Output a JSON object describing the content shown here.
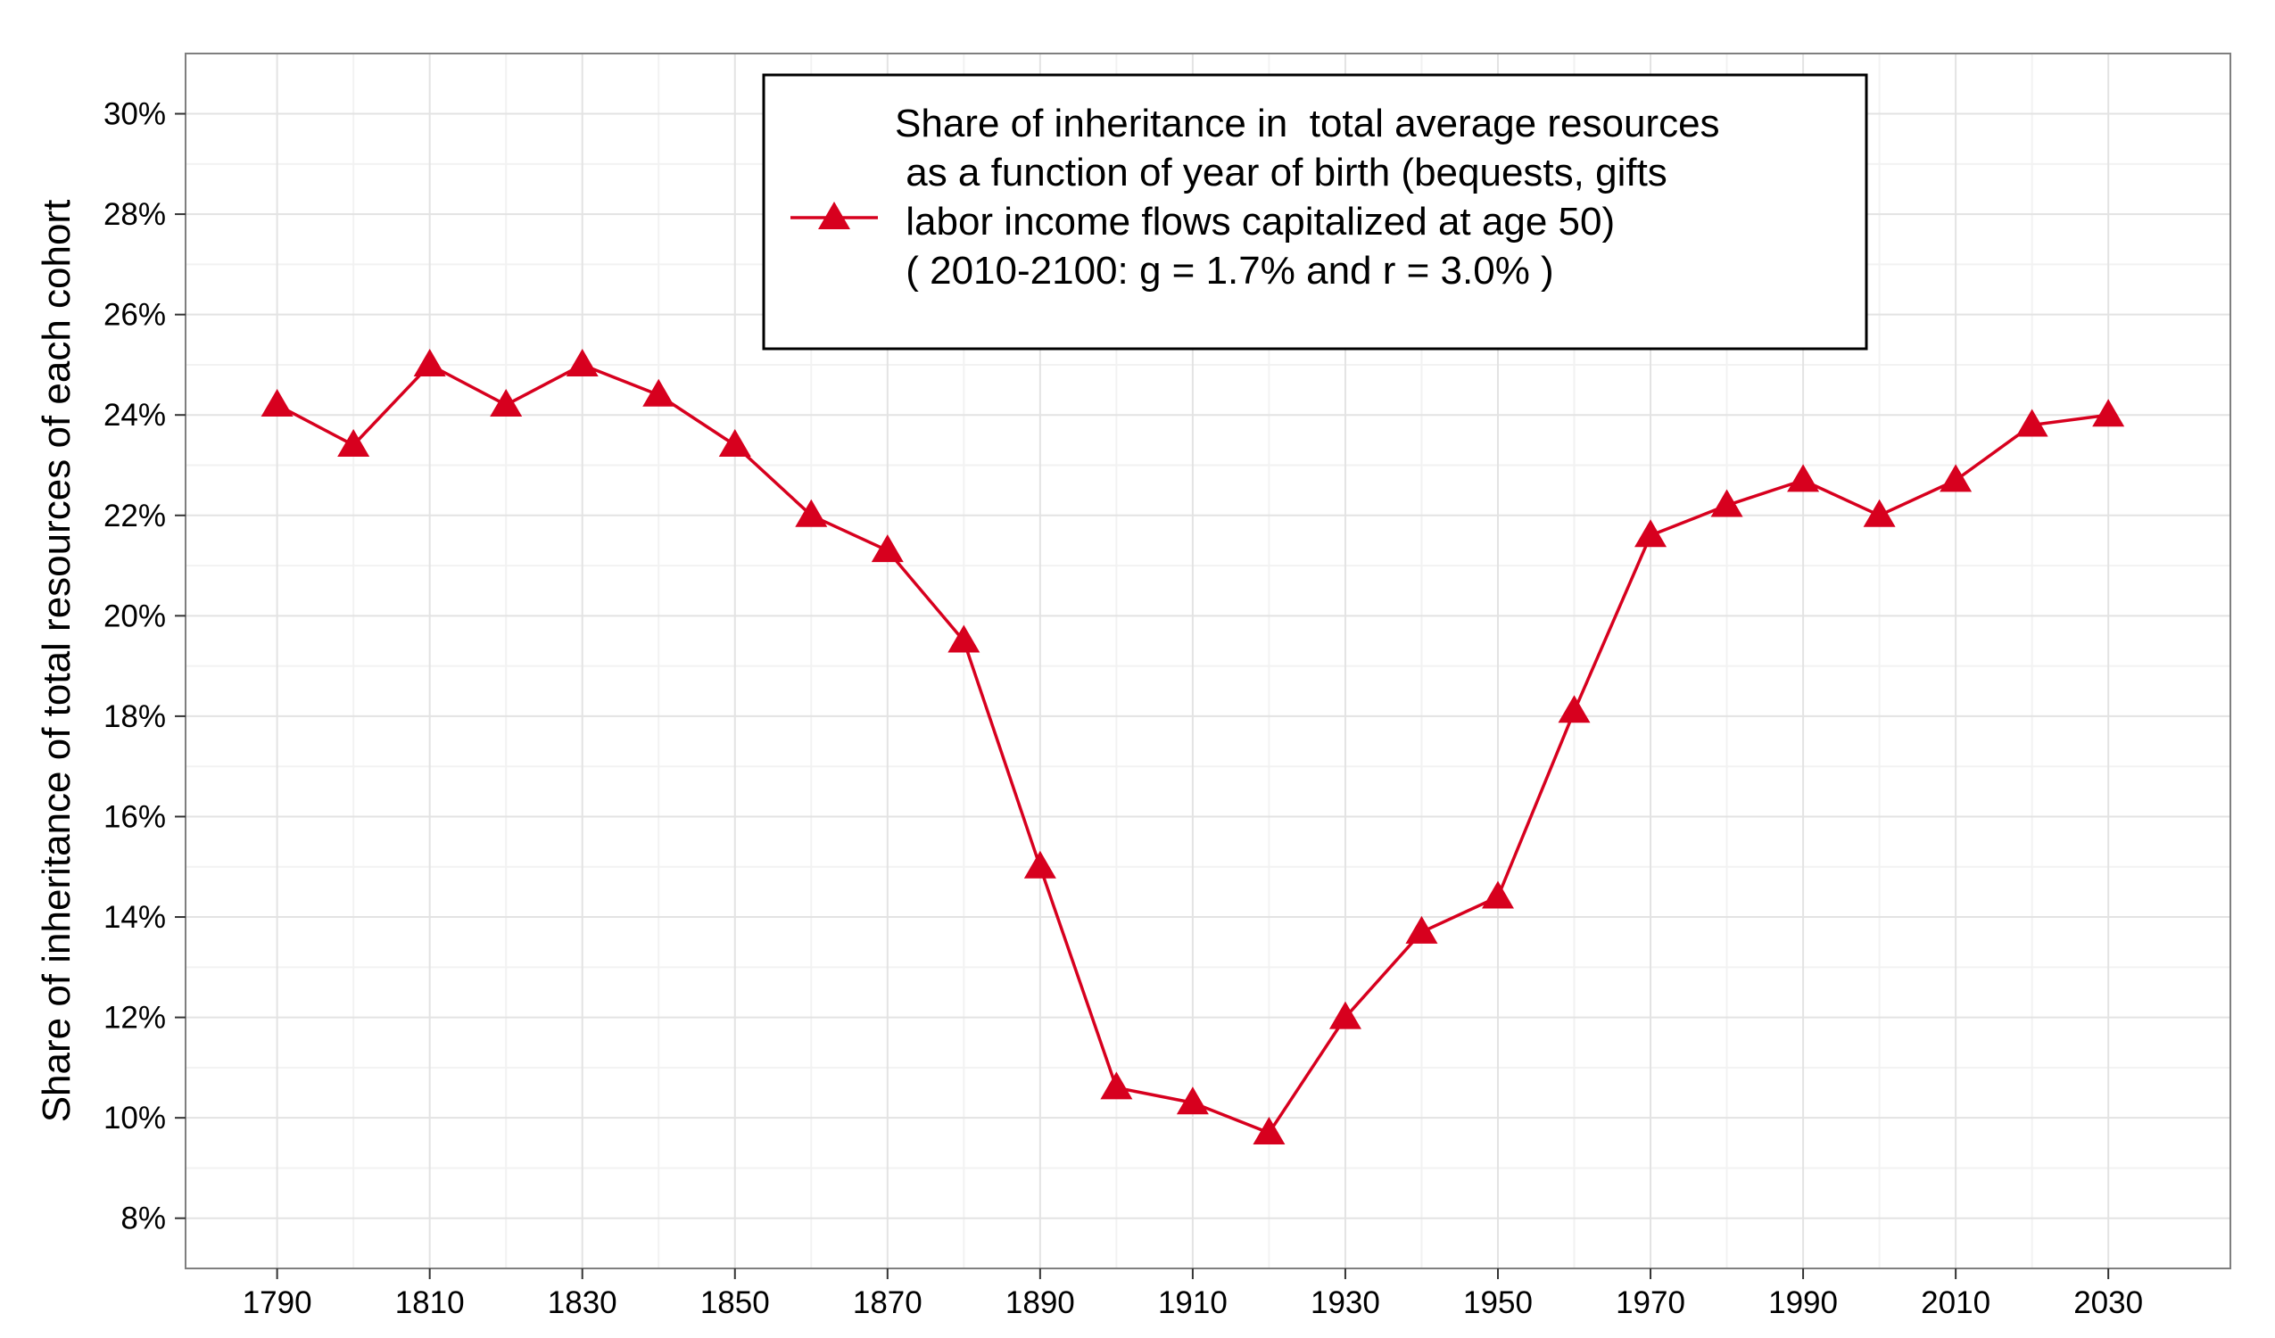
{
  "chart_data": {
    "type": "line",
    "title": "",
    "xlabel": "",
    "ylabel": "Share of inheritance of total resources of each cohort",
    "x": [
      1790,
      1800,
      1810,
      1820,
      1830,
      1840,
      1850,
      1860,
      1870,
      1880,
      1890,
      1900,
      1910,
      1920,
      1930,
      1940,
      1950,
      1960,
      1970,
      1980,
      1990,
      2000,
      2010,
      2020,
      2030
    ],
    "series": [
      {
        "name": "Share of inheritance in  total average resources as a function of year of birth (bequests, gifts labor income flows capitalized at age 50) ( 2010-2100: g = 1.7% and r = 3.0% )",
        "values": [
          24.2,
          23.4,
          25.0,
          24.2,
          25.0,
          24.4,
          23.4,
          22.0,
          21.3,
          19.5,
          15.0,
          10.6,
          10.3,
          9.7,
          12.0,
          13.7,
          14.4,
          18.1,
          21.6,
          22.2,
          22.7,
          22.0,
          22.7,
          23.8,
          24.0
        ]
      }
    ],
    "xlim": [
      1778,
      2046
    ],
    "ylim": [
      7,
      31.2
    ],
    "xticks": [
      "1790",
      "1810",
      "1830",
      "1850",
      "1870",
      "1890",
      "1910",
      "1930",
      "1950",
      "1970",
      "1990",
      "2010",
      "2030"
    ],
    "yticks": [
      "8%",
      "10%",
      "12%",
      "14%",
      "16%",
      "18%",
      "20%",
      "22%",
      "24%",
      "26%",
      "28%",
      "30%"
    ],
    "grid": true,
    "legend": {
      "placement": "top-center",
      "lines": [
        "Share of inheritance in  total average resources",
        " as a function of year of birth (bequests, gifts",
        " labor income flows capitalized at age 50)",
        " ( 2010-2100: g = 1.7% and r = 3.0% )"
      ]
    },
    "colors": {
      "series": "#d7001e",
      "grid_major": "#e3e3e3",
      "grid_minor": "#f2f2f2",
      "frame": "#7f7f7f"
    }
  }
}
